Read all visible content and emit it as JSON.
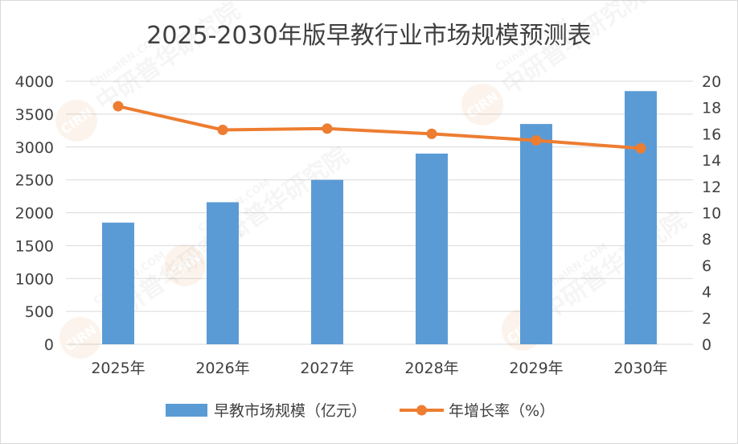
{
  "chart_data": {
    "type": "bar",
    "title": "2025-2030年版早教行业市场规模预测表",
    "categories": [
      "2025年",
      "2026年",
      "2027年",
      "2028年",
      "2029年",
      "2030年"
    ],
    "series": [
      {
        "name": "早教市场规模（亿元）",
        "type": "bar",
        "axis": "left",
        "color": "#5b9bd5",
        "values": [
          1850,
          2160,
          2500,
          2900,
          3350,
          3850
        ]
      },
      {
        "name": "年增长率（%）",
        "type": "line",
        "axis": "right",
        "color": "#ed7d31",
        "values": [
          18.1,
          16.3,
          16.4,
          16.0,
          15.5,
          14.9
        ]
      }
    ],
    "y_left": {
      "min": 0,
      "max": 4000,
      "ticks": [
        "0",
        "500",
        "1000",
        "1500",
        "2000",
        "2500",
        "3000",
        "3500",
        "4000"
      ]
    },
    "y_right": {
      "min": 0,
      "max": 20,
      "ticks": [
        "0",
        "2",
        "4",
        "6",
        "8",
        "10",
        "12",
        "14",
        "16",
        "18",
        "20"
      ]
    },
    "grid": true,
    "legend_position": "bottom",
    "gridline_color": "#d9d9d9"
  },
  "watermark": {
    "name": "中研普华研究院",
    "site": "ChinaIRN.COM",
    "logo": "CIRN"
  }
}
